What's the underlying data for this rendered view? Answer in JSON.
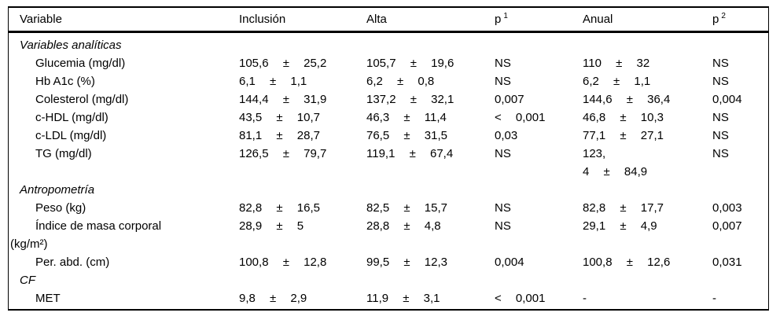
{
  "table": {
    "columns": [
      {
        "label": "Variable",
        "sup": ""
      },
      {
        "label": "Inclusión",
        "sup": ""
      },
      {
        "label": "Alta",
        "sup": ""
      },
      {
        "label": "p",
        "sup": "1"
      },
      {
        "label": "Anual",
        "sup": ""
      },
      {
        "label": "p",
        "sup": "2"
      }
    ],
    "rows": [
      {
        "type": "section",
        "label": "Variables analíticas"
      },
      {
        "type": "data",
        "label": "Glucemia (mg/dl)",
        "inclusion": "105,6 ± 25,2",
        "alta": "105,7 ± 19,6",
        "p1": "NS",
        "anual": "110 ± 32",
        "p2": "NS"
      },
      {
        "type": "data",
        "label": "Hb A1c (%)",
        "inclusion": "6,1 ± 1,1",
        "alta": "6,2 ± 0,8",
        "p1": "NS",
        "anual": "6,2 ± 1,1",
        "p2": "NS"
      },
      {
        "type": "data",
        "label": "Colesterol (mg/dl)",
        "inclusion": "144,4 ± 31,9",
        "alta": "137,2 ± 32,1",
        "p1": "0,007",
        "anual": "144,6 ± 36,4",
        "p2": "0,004"
      },
      {
        "type": "data",
        "label": "c-HDL (mg/dl)",
        "inclusion": "43,5 ± 10,7",
        "alta": "46,3 ± 11,4",
        "p1": "< 0,001",
        "anual": "46,8 ± 10,3",
        "p2": "NS"
      },
      {
        "type": "data",
        "label": "c-LDL (mg/dl)",
        "inclusion": "81,1 ± 28,7",
        "alta": "76,5 ± 31,5",
        "p1": "0,03",
        "anual": "77,1 ± 27,1",
        "p2": "NS"
      },
      {
        "type": "data",
        "label": "TG (mg/dl)",
        "inclusion": "126,5 ± 79,7",
        "alta": "119,1 ± 67,4",
        "p1": "NS",
        "anual": "123,\n4 ± 84,9",
        "p2": "NS"
      },
      {
        "type": "section",
        "label": "Antropometría"
      },
      {
        "type": "data",
        "label": "Peso (kg)",
        "inclusion": "82,8 ± 16,5",
        "alta": "82,5 ± 15,7",
        "p1": "NS",
        "anual": "82,8 ± 17,7",
        "p2": "0,003"
      },
      {
        "type": "data",
        "label": "Índice de masa corporal",
        "label2": "(kg/m²)",
        "inclusion": "28,9 ± 5",
        "alta": "28,8 ± 4,8",
        "p1": "NS",
        "anual": "29,1 ± 4,9",
        "p2": "0,007"
      },
      {
        "type": "data",
        "label": "Per. abd. (cm)",
        "inclusion": "100,8 ± 12,8",
        "alta": "99,5 ± 12,3",
        "p1": "0,004",
        "anual": "100,8 ± 12,6",
        "p2": "0,031"
      },
      {
        "type": "section",
        "label": "CF"
      },
      {
        "type": "data",
        "label": "MET",
        "inclusion": "9,8 ± 2,9",
        "alta": "11,9 ± 3,1",
        "p1": "< 0,001",
        "anual": "-",
        "p2": "-"
      }
    ]
  }
}
